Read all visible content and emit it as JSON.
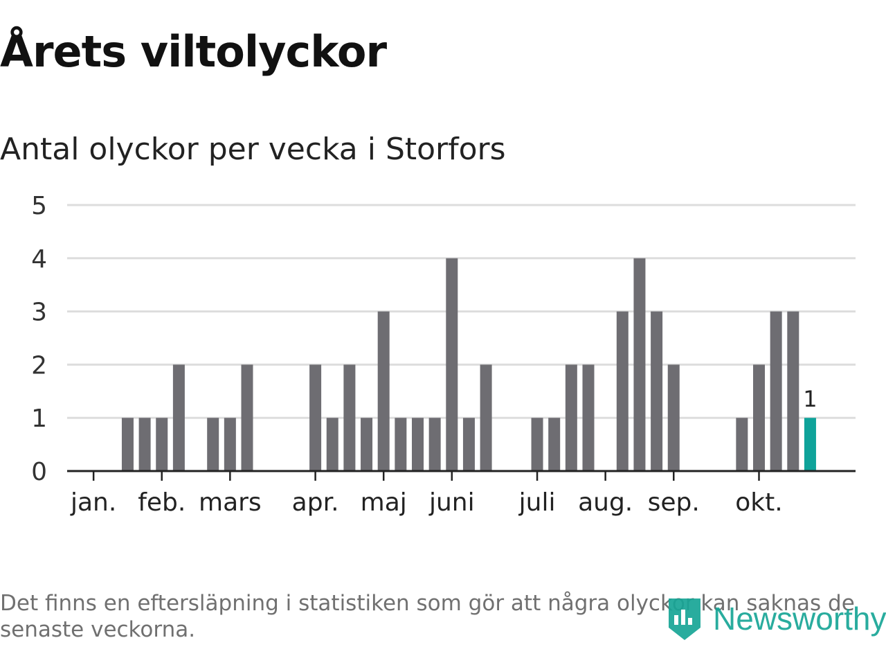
{
  "title": "Årets viltolyckor",
  "subtitle": "Antal olyckor per vecka i Storfors",
  "footnote": "Det finns en eftersläpning i statistiken som gör att några olyckor kan saknas de senaste veckorna.",
  "brand": "Newsworthy",
  "colors": {
    "bar": "#6e6d72",
    "highlight": "#0fa39a",
    "grid": "#dddddd",
    "axis": "#222222",
    "brand": "#17a596"
  },
  "chart_data": {
    "type": "bar",
    "title": "Årets viltolyckor",
    "subtitle": "Antal olyckor per vecka i Storfors",
    "xlabel": "",
    "ylabel": "",
    "ylim": [
      0,
      5
    ],
    "yticks": [
      0,
      1,
      2,
      3,
      4,
      5
    ],
    "grid": true,
    "x": [
      1,
      2,
      3,
      4,
      5,
      6,
      7,
      8,
      9,
      10,
      11,
      12,
      13,
      14,
      15,
      16,
      17,
      18,
      19,
      20,
      21,
      22,
      23,
      24,
      25,
      26,
      27,
      28,
      29,
      30,
      31,
      32,
      33,
      34,
      35,
      36,
      37,
      38,
      39,
      40,
      41,
      42,
      43
    ],
    "values": [
      0,
      0,
      0,
      1,
      1,
      1,
      2,
      0,
      1,
      1,
      2,
      0,
      0,
      0,
      2,
      1,
      2,
      1,
      3,
      1,
      1,
      1,
      4,
      1,
      2,
      0,
      0,
      1,
      1,
      2,
      2,
      0,
      3,
      4,
      3,
      2,
      0,
      0,
      0,
      1,
      2,
      3,
      3
    ],
    "highlight": {
      "x": 44,
      "value": 1,
      "label": "1"
    },
    "xticks": [
      {
        "x": 2,
        "label": "jan."
      },
      {
        "x": 6,
        "label": "feb."
      },
      {
        "x": 10,
        "label": "mars"
      },
      {
        "x": 15,
        "label": "apr."
      },
      {
        "x": 19,
        "label": "maj"
      },
      {
        "x": 23,
        "label": "juni"
      },
      {
        "x": 28,
        "label": "juli"
      },
      {
        "x": 32,
        "label": "aug."
      },
      {
        "x": 36,
        "label": "sep."
      },
      {
        "x": 41,
        "label": "okt."
      }
    ]
  }
}
